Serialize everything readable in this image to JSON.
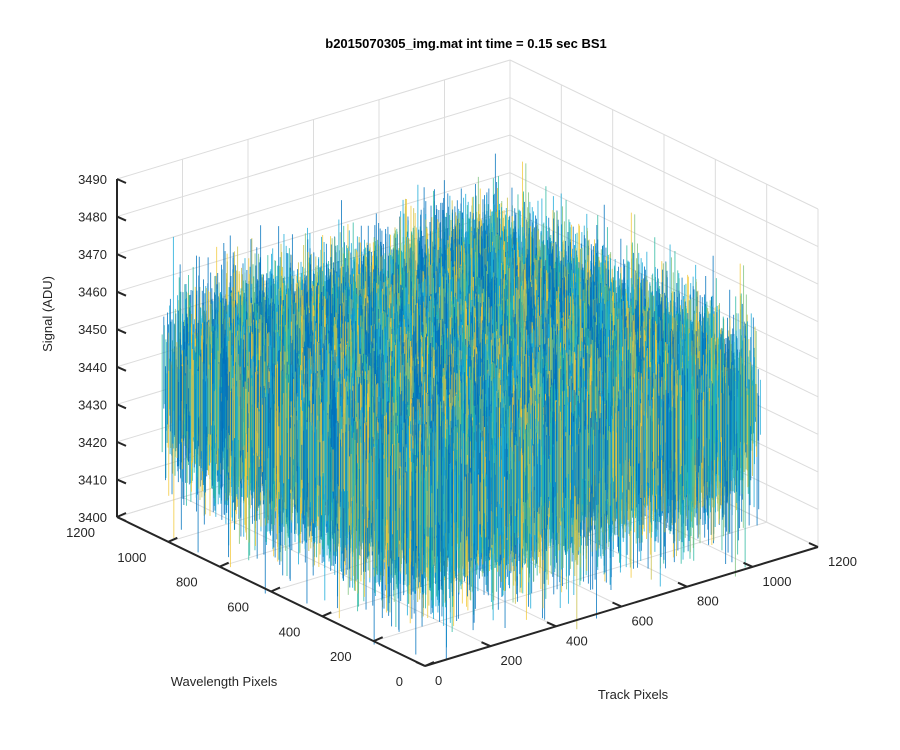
{
  "chart_data": {
    "type": "surface",
    "title": "b2015070305_img.mat int time = 0.15 sec   BS1",
    "xlabel": "Track Pixels",
    "ylabel": "Wavelength Pixels",
    "zlabel": "Signal (ADU)",
    "xlim": [
      0,
      1200
    ],
    "ylim": [
      0,
      1200
    ],
    "zlim": [
      3400,
      3490
    ],
    "xticks": [
      "0",
      "200",
      "400",
      "600",
      "800",
      "1000",
      "1200"
    ],
    "yticks": [
      "0",
      "200",
      "400",
      "600",
      "800",
      "1000",
      "1200"
    ],
    "zticks": [
      "3400",
      "3410",
      "3420",
      "3430",
      "3440",
      "3450",
      "3460",
      "3470",
      "3480",
      "3490"
    ],
    "surface": {
      "x_range": [
        0,
        1024
      ],
      "y_range": [
        0,
        1024
      ],
      "mean_signal": 3442,
      "min_signal": 3400,
      "max_signal": 3480,
      "colormap": "parula",
      "colors": [
        "#0072bd",
        "#19a9d8",
        "#2bb8a0",
        "#7dc17c",
        "#c8bf4a",
        "#f2c93a"
      ]
    },
    "grid": true,
    "view": "3d"
  }
}
